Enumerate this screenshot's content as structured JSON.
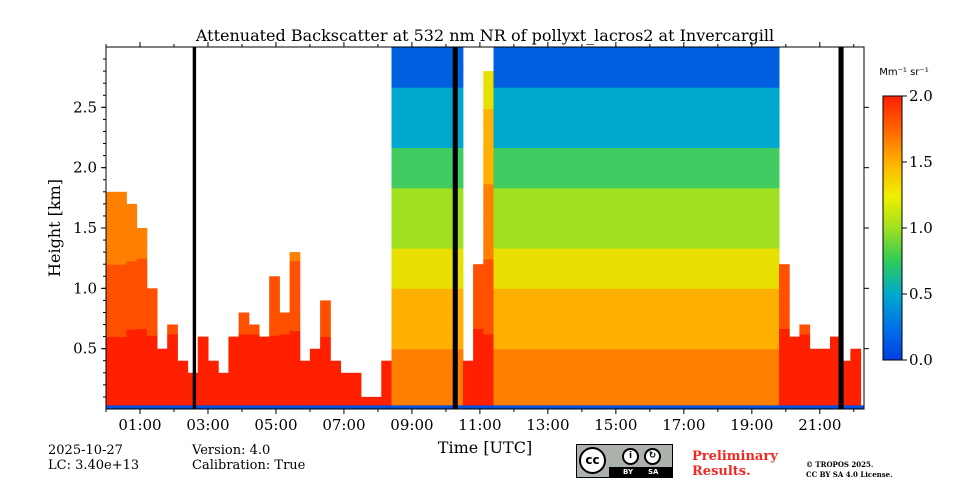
{
  "chart_data": {
    "type": "heatmap",
    "title": "Attenuated Backscatter at 532 nm NR of pollyxt_lacros2 at Invercargill",
    "xlabel": "Time [UTC]",
    "ylabel": "Height [km]",
    "xlim_hours_utc": [
      0.0,
      22.3
    ],
    "ylim_km": [
      0.0,
      3.0
    ],
    "x_ticks": [
      "01:00",
      "03:00",
      "05:00",
      "07:00",
      "09:00",
      "11:00",
      "13:00",
      "15:00",
      "17:00",
      "19:00",
      "21:00"
    ],
    "x_tick_hours": [
      1,
      3,
      5,
      7,
      9,
      11,
      13,
      15,
      17,
      19,
      21
    ],
    "y_ticks": [
      "0.5",
      "1.0",
      "1.5",
      "2.0",
      "2.5"
    ],
    "y_tick_values": [
      0.5,
      1.0,
      1.5,
      2.0,
      2.5
    ],
    "colorbar": {
      "label": "Mm⁻¹ sr⁻¹",
      "range": [
        0.0,
        2.0
      ],
      "ticks": [
        "0.0",
        "0.5",
        "1.0",
        "1.5",
        "2.0"
      ],
      "tick_values": [
        0.0,
        0.5,
        1.0,
        1.5,
        2.0
      ],
      "colormap": "jet"
    },
    "no_data_gaps_hours": [
      [
        2.55,
        2.65
      ],
      [
        10.2,
        10.35
      ],
      [
        21.55,
        21.7
      ]
    ],
    "cloud_base_profile": {
      "hours": [
        0.0,
        0.3,
        0.6,
        0.9,
        1.2,
        1.5,
        1.8,
        2.1,
        2.4,
        2.7,
        3.0,
        3.3,
        3.6,
        3.9,
        4.2,
        4.5,
        4.8,
        5.1,
        5.4,
        5.7,
        6.0,
        6.3,
        6.6,
        6.9,
        7.2,
        7.5,
        7.8,
        8.1,
        8.4,
        8.7,
        9.0,
        9.3,
        9.6,
        9.9,
        10.2,
        10.5,
        10.8,
        11.1,
        11.4,
        11.7,
        12.0,
        12.3,
        12.6,
        12.9,
        13.2,
        13.5,
        13.8,
        14.1,
        14.4,
        14.7,
        15.0,
        15.3,
        15.6,
        15.9,
        16.2,
        16.5,
        16.8,
        17.1,
        17.4,
        17.7,
        18.0,
        18.3,
        18.6,
        18.9,
        19.2,
        19.5,
        19.8,
        20.1,
        20.4,
        20.7,
        21.0,
        21.3,
        21.6,
        21.9,
        22.2
      ],
      "top_of_signal_km": [
        1.8,
        1.8,
        1.7,
        1.5,
        1.0,
        0.5,
        0.7,
        0.4,
        0.3,
        0.6,
        0.4,
        0.3,
        0.6,
        0.8,
        0.7,
        0.6,
        1.1,
        0.8,
        1.3,
        0.4,
        0.5,
        0.9,
        0.4,
        0.3,
        0.3,
        0.1,
        0.1,
        0.4,
        3.0,
        3.0,
        3.0,
        3.0,
        3.0,
        3.0,
        3.0,
        0.4,
        1.2,
        2.8,
        3.0,
        3.0,
        3.0,
        3.0,
        3.0,
        3.0,
        3.0,
        3.0,
        3.0,
        3.0,
        3.0,
        3.0,
        3.0,
        3.0,
        3.0,
        3.0,
        3.0,
        3.0,
        3.0,
        3.0,
        3.0,
        3.0,
        3.0,
        3.0,
        3.0,
        3.0,
        3.0,
        3.0,
        1.2,
        0.6,
        0.7,
        0.5,
        0.5,
        0.6,
        0.4,
        0.5,
        0.5
      ]
    }
  },
  "footer": {
    "date": "2025-10-27",
    "lc": "LC: 3.40e+13",
    "version": "Version: 4.0",
    "calibration": "Calibration: True",
    "preliminary_line1": "Preliminary",
    "preliminary_line2": "Results.",
    "license_line1": "© TROPOS 2025.",
    "license_line2": "CC BY SA 4.0 License.",
    "badge_cc": "cc",
    "badge_by": "BY",
    "badge_sa": "SA"
  },
  "colors": {
    "gap": "#000000",
    "no_signal": "#ffffff",
    "low": "#0050e0",
    "high": "#ff3000"
  }
}
